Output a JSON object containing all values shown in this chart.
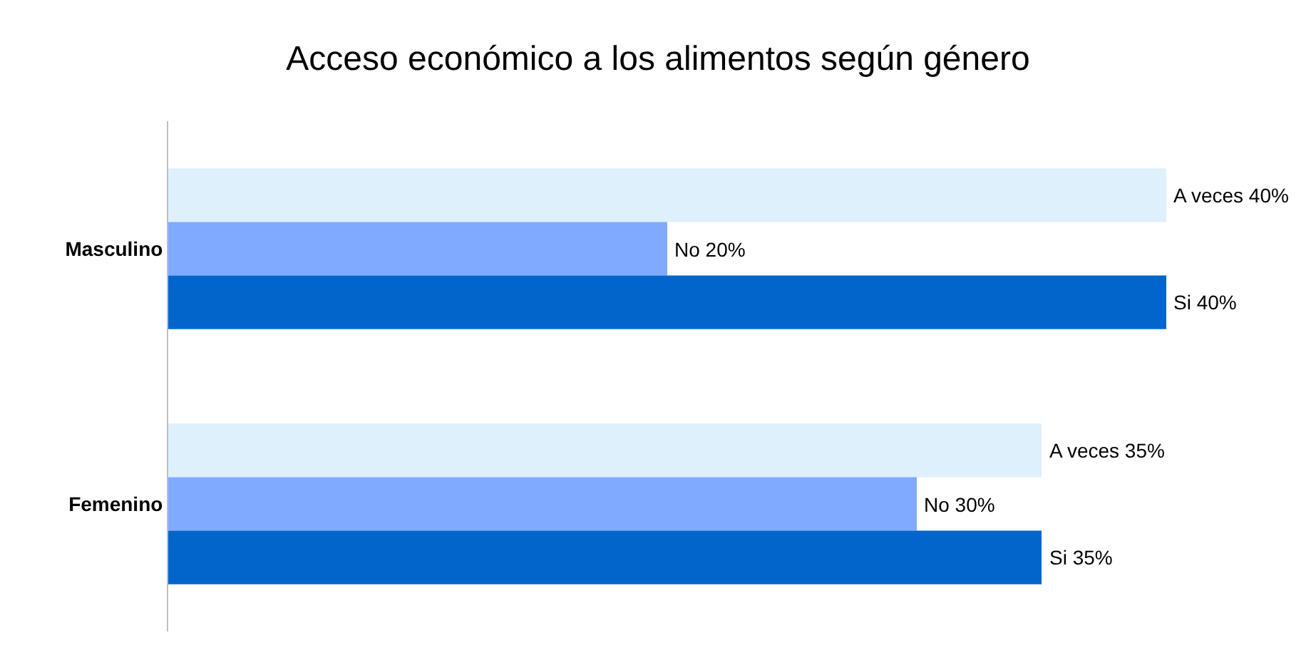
{
  "chart_data": {
    "type": "bar",
    "orientation": "horizontal",
    "title": "Acceso económico a los alimentos según género",
    "categories": [
      "Masculino",
      "Femenino"
    ],
    "series": [
      {
        "color": "#ddf0fc",
        "values": [
          40,
          35
        ],
        "value_labels": [
          "A veces 40%",
          "A veces 35%"
        ]
      },
      {
        "color": "#80aaff",
        "values": [
          20,
          30
        ],
        "value_labels": [
          "No 20%",
          "No 30%"
        ]
      },
      {
        "color": "#0066cc",
        "values": [
          40,
          35
        ],
        "value_labels": [
          "Si 40%",
          "Si 35%"
        ]
      }
    ],
    "legend": false,
    "grid": false
  }
}
